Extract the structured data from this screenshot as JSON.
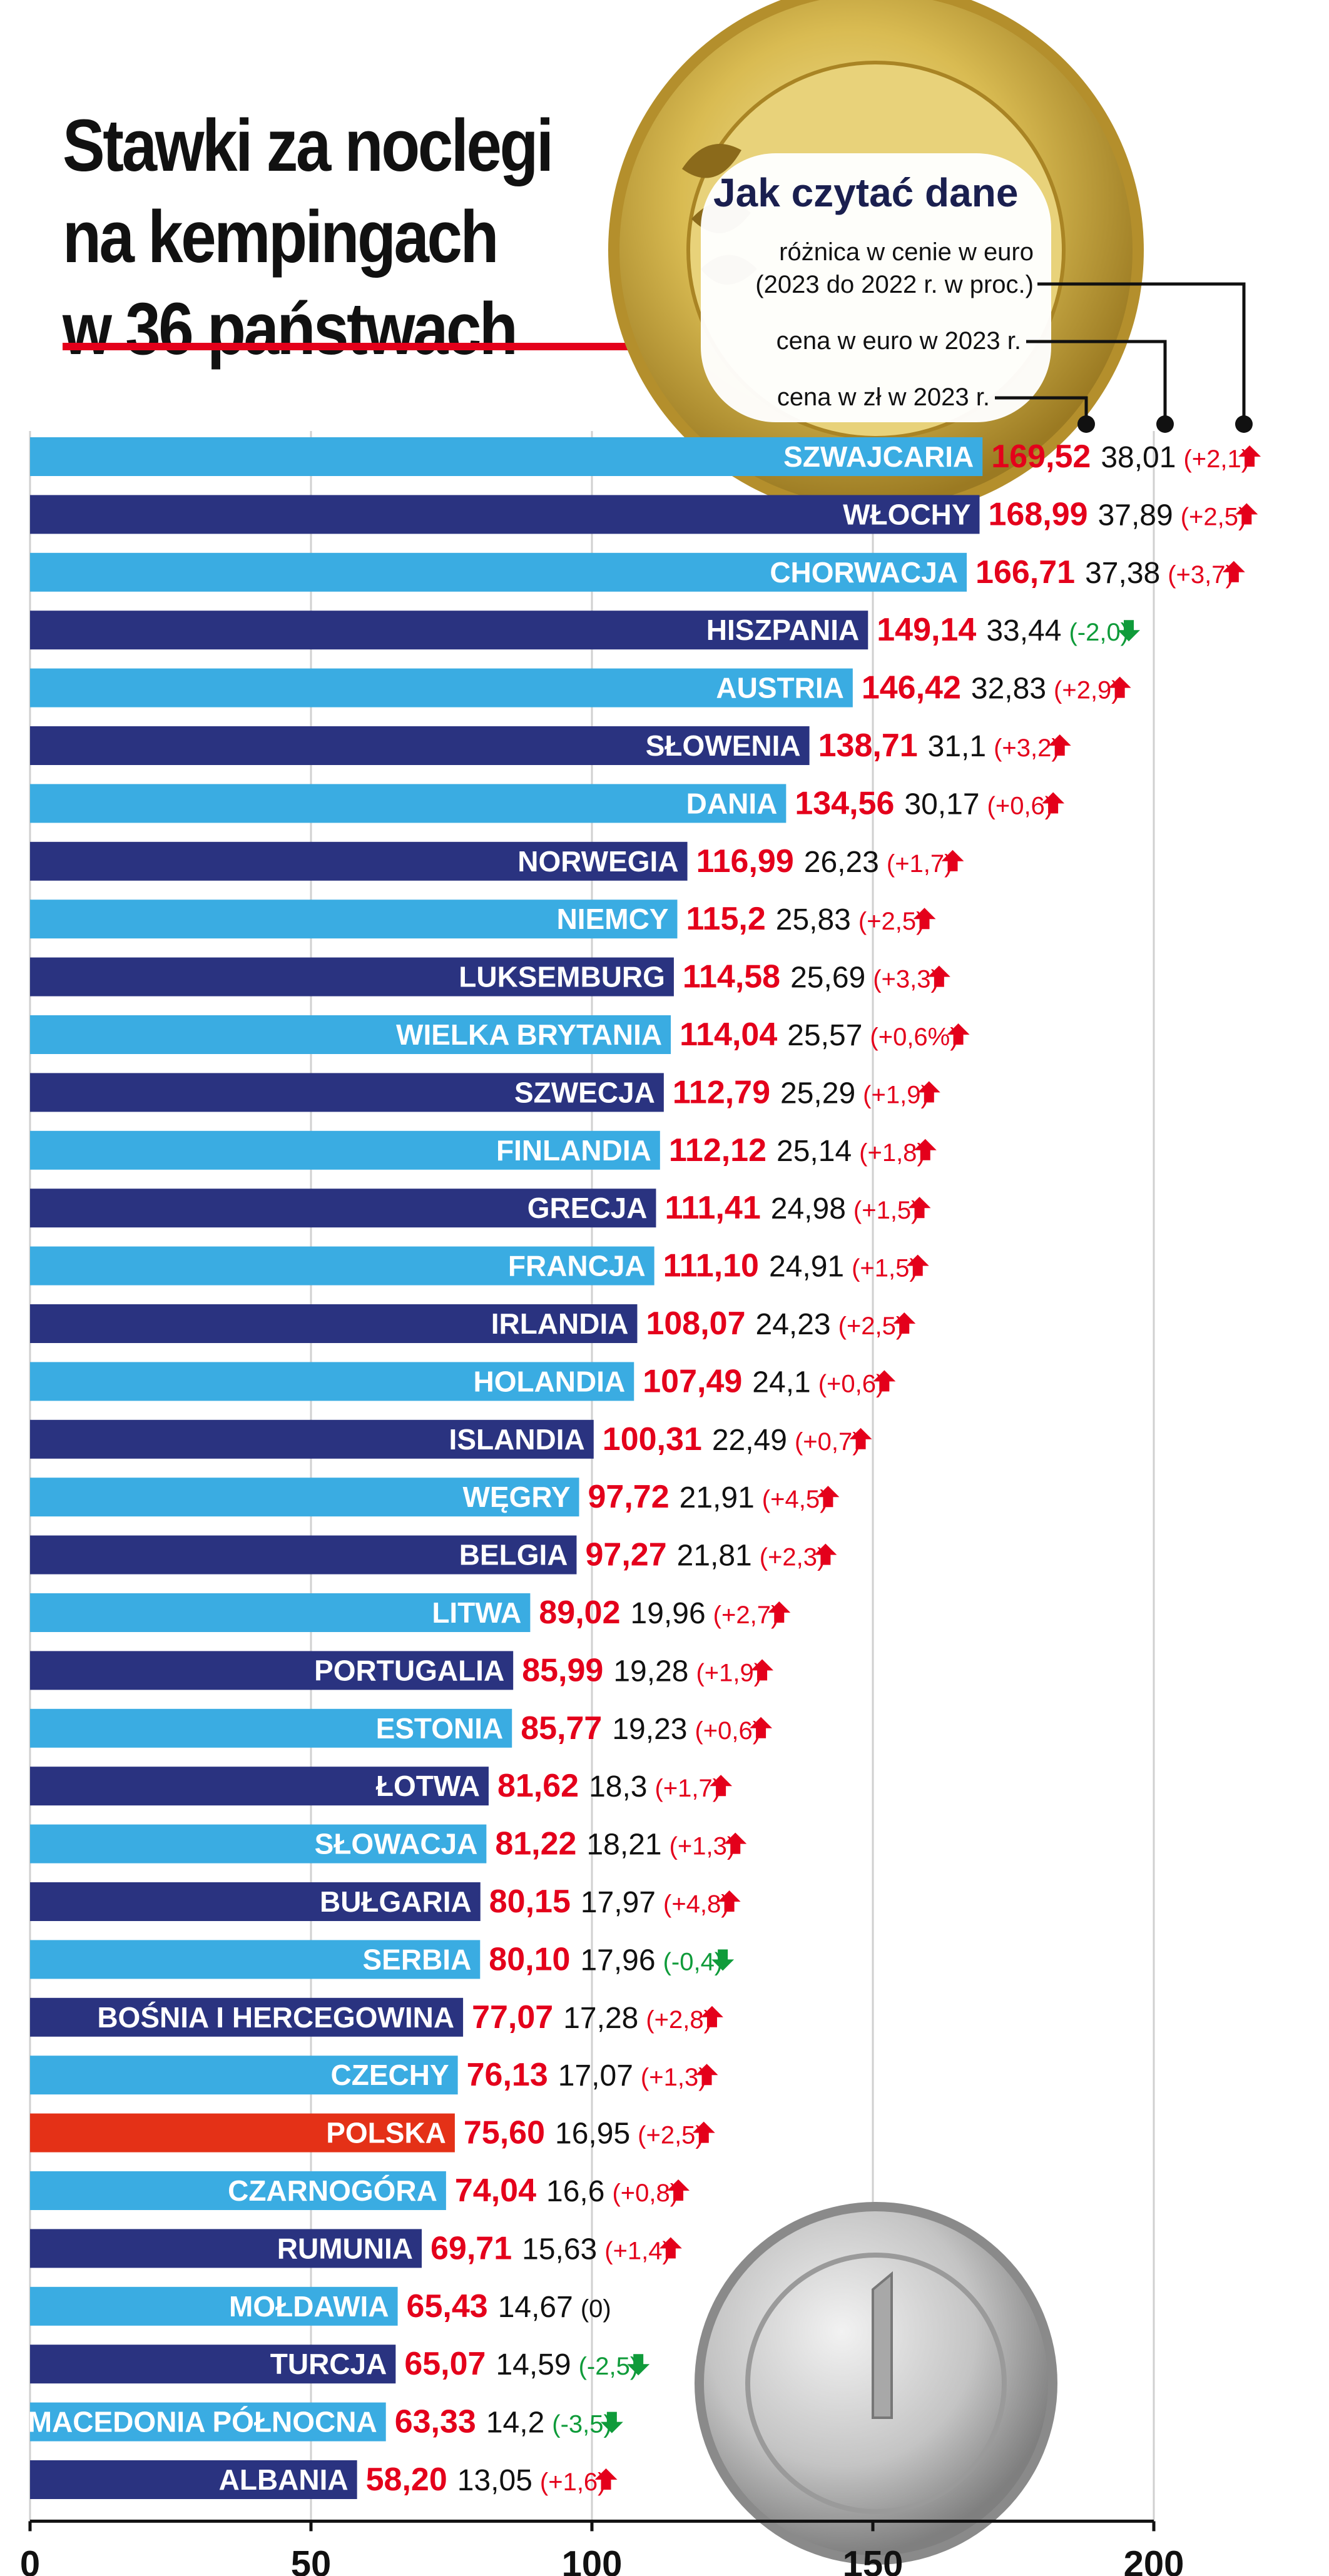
{
  "title": {
    "line1": "Stawki za noclegi",
    "line2": "na kempingach",
    "line3": "w 36 państwach"
  },
  "legend": {
    "heading": "Jak czytać dane",
    "diff": [
      "różnica w cenie w euro",
      "(2023 do 2022 r. w proc.)"
    ],
    "eur": "cena w euro w 2023 r.",
    "pln": "cena w zł w 2023 r."
  },
  "colors": {
    "light": "#3aace2",
    "dark": "#2a3380",
    "highlight": "#e43117",
    "red": "#e4001b",
    "green": "#0f9b3a"
  },
  "icons": {
    "up": "arrow-up-icon",
    "down": "arrow-down-icon"
  },
  "chart_data": {
    "type": "bar",
    "orientation": "horizontal",
    "xlim": [
      0,
      200
    ],
    "xticks": [
      0,
      50,
      100,
      150,
      200
    ],
    "grid": true,
    "categories": [
      "SZWAJCARIA",
      "WŁOCHY",
      "CHORWACJA",
      "HISZPANIA",
      "AUSTRIA",
      "SŁOWENIA",
      "DANIA",
      "NORWEGIA",
      "NIEMCY",
      "LUKSEMBURG",
      "WIELKA BRYTANIA",
      "SZWECJA",
      "FINLANDIA",
      "GRECJA",
      "FRANCJA",
      "IRLANDIA",
      "HOLANDIA",
      "ISLANDIA",
      "WĘGRY",
      "BELGIA",
      "LITWA",
      "PORTUGALIA",
      "ESTONIA",
      "ŁOTWA",
      "SŁOWACJA",
      "BUŁGARIA",
      "SERBIA",
      "BOŚNIA I HERCEGOWINA",
      "CZECHY",
      "POLSKA",
      "CZARNOGÓRA",
      "RUMUNIA",
      "MOŁDAWIA",
      "TURCJA",
      "MACEDONIA PÓŁNOCNA",
      "ALBANIA"
    ],
    "series": [
      {
        "values": [
          169.52,
          168.99,
          166.71,
          149.14,
          146.42,
          138.71,
          134.56,
          116.99,
          115.2,
          114.58,
          114.04,
          112.79,
          112.12,
          111.41,
          111.1,
          108.07,
          107.49,
          100.31,
          97.72,
          97.27,
          89.02,
          85.99,
          85.77,
          81.62,
          81.22,
          80.15,
          80.1,
          77.07,
          76.13,
          75.6,
          74.04,
          69.71,
          65.43,
          65.07,
          63.33,
          58.2
        ],
        "labels": [
          "169,52",
          "168,99",
          "166,71",
          "149,14",
          "146,42",
          "138,71",
          "134,56",
          "116,99",
          "115,2",
          "114,58",
          "114,04",
          "112,79",
          "112,12",
          "111,41",
          "111,10",
          "108,07",
          "107,49",
          "100,31",
          "97,72",
          "97,27",
          "89,02",
          "85,99",
          "85,77",
          "81,62",
          "81,22",
          "80,15",
          "80,10",
          "77,07",
          "76,13",
          "75,60",
          "74,04",
          "69,71",
          "65,43",
          "65,07",
          "63,33",
          "58,20"
        ]
      },
      {
        "values": [
          38.01,
          37.89,
          37.38,
          33.44,
          32.83,
          31.1,
          30.17,
          26.23,
          25.83,
          25.69,
          25.57,
          25.29,
          25.14,
          24.98,
          24.91,
          24.23,
          24.1,
          22.49,
          21.91,
          21.81,
          19.96,
          19.28,
          19.23,
          18.3,
          18.21,
          17.97,
          17.96,
          17.28,
          17.07,
          16.95,
          16.6,
          15.63,
          14.67,
          14.59,
          14.2,
          13.05
        ],
        "labels": [
          "38,01",
          "37,89",
          "37,38",
          "33,44",
          "32,83",
          "31,1",
          "30,17",
          "26,23",
          "25,83",
          "25,69",
          "25,57",
          "25,29",
          "25,14",
          "24,98",
          "24,91",
          "24,23",
          "24,1",
          "22,49",
          "21,91",
          "21,81",
          "19,96",
          "19,28",
          "19,23",
          "18,3",
          "18,21",
          "17,97",
          "17,96",
          "17,28",
          "17,07",
          "16,95",
          "16,6",
          "15,63",
          "14,67",
          "14,59",
          "14,2",
          "13,05"
        ]
      },
      {
        "values": [
          2.1,
          2.5,
          3.7,
          -2.0,
          2.9,
          3.2,
          0.6,
          1.7,
          2.5,
          3.3,
          0.6,
          1.9,
          1.8,
          1.5,
          1.5,
          2.5,
          0.6,
          0.7,
          4.5,
          2.3,
          2.7,
          1.9,
          0.6,
          1.7,
          1.3,
          4.8,
          -0.4,
          2.8,
          1.3,
          2.5,
          0.8,
          1.4,
          0,
          -2.5,
          -3.5,
          1.6
        ],
        "labels": [
          "(+2,1)",
          "(+2,5)",
          "(+3,7)",
          "(-2,0)",
          "(+2,9)",
          "(+3,2)",
          "(+0,6)",
          "(+1,7)",
          "(+2,5)",
          "(+3,3)",
          "(+0,6%)",
          "(+1,9)",
          "(+1,8)",
          "(+1,5)",
          "(+1,5)",
          "(+2,5)",
          "(+0,6)",
          "(+0,7)",
          "(+4,5)",
          "(+2,3)",
          "(+2,7)",
          "(+1,9)",
          "(+0,6)",
          "(+1,7)",
          "(+1,3)",
          "(+4,8)",
          "(-0,4)",
          "(+2,8)",
          "(+1,3)",
          "(+2,5)",
          "(+0,8)",
          "(+1,4)",
          "(0)",
          "(-2,5)",
          "(-3,5)",
          "(+1,6)"
        ]
      }
    ],
    "highlight": "POLSKA"
  }
}
